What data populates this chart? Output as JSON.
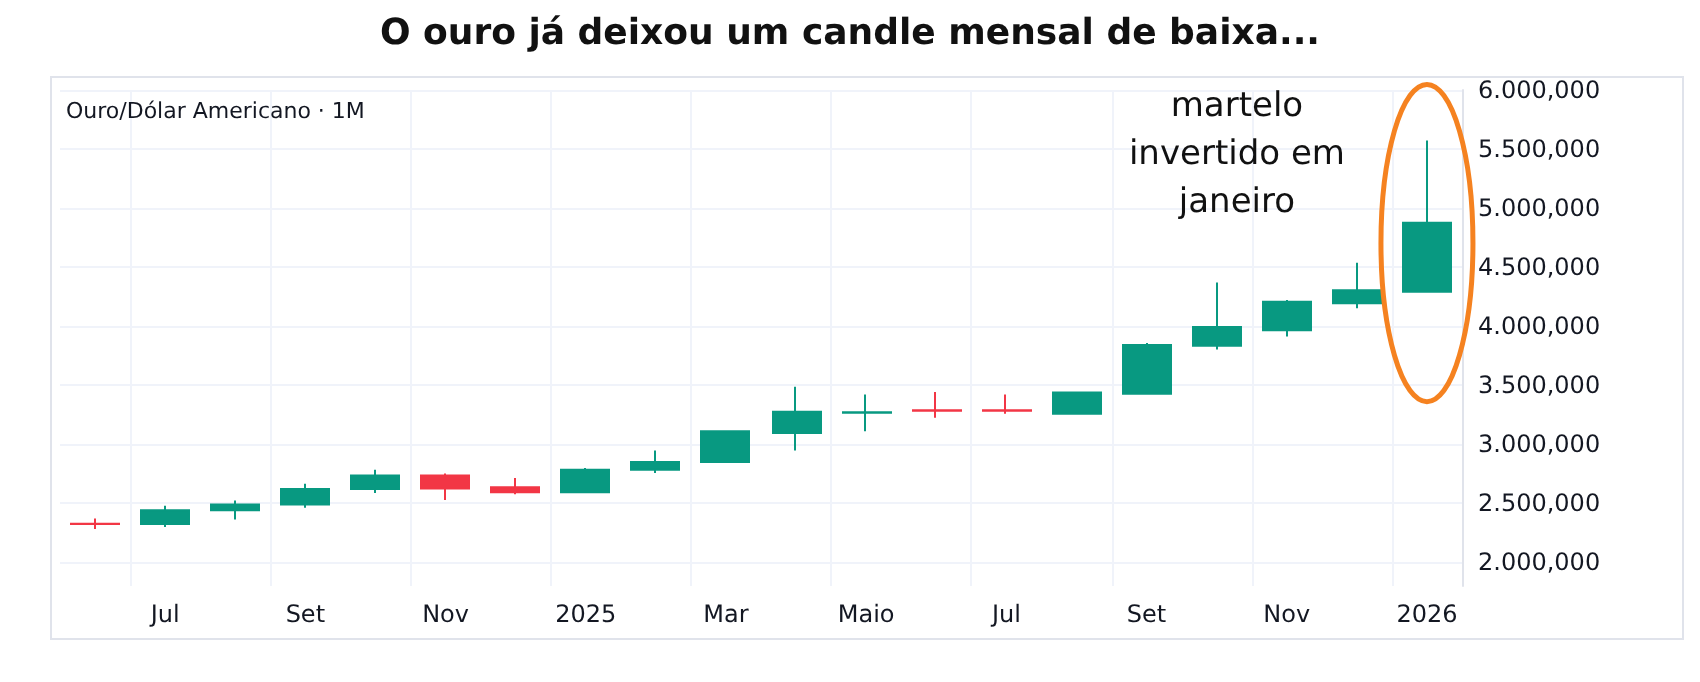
{
  "chart_data": {
    "type": "candlestick",
    "title": "O ouro já deixou um candle mensal de baixa...",
    "subtitle": "Ouro/Dólar Americano · 1M",
    "categories": [
      null,
      "Jul",
      null,
      "Set",
      null,
      "Nov",
      null,
      "2025",
      null,
      "Mar",
      null,
      "Maio",
      null,
      "Jul",
      null,
      "Set",
      null,
      "Nov",
      null,
      "2026"
    ],
    "ohlc": [
      [
        2327,
        2371,
        2283,
        2326
      ],
      [
        2326,
        2479,
        2300,
        2441
      ],
      [
        2441,
        2523,
        2364,
        2490
      ],
      [
        2490,
        2665,
        2463,
        2621
      ],
      [
        2621,
        2784,
        2588,
        2735
      ],
      [
        2735,
        2752,
        2528,
        2626
      ],
      [
        2637,
        2714,
        2577,
        2593
      ],
      [
        2593,
        2800,
        2590,
        2784
      ],
      [
        2784,
        2948,
        2757,
        2850
      ],
      [
        2850,
        3111,
        2850,
        3111
      ],
      [
        3095,
        3487,
        2948,
        3275
      ],
      [
        3268,
        3421,
        3111,
        3272
      ],
      [
        3288,
        3443,
        3225,
        3284
      ],
      [
        3288,
        3421,
        3258,
        3284
      ],
      [
        3258,
        3438,
        3258,
        3438
      ],
      [
        3427,
        3858,
        3427,
        3841
      ],
      [
        3835,
        4369,
        3803,
        3993
      ],
      [
        3966,
        4222,
        3912,
        4206
      ],
      [
        4194,
        4538,
        4152,
        4304
      ],
      [
        4292,
        5573,
        4292,
        4876
      ]
    ],
    "ylim": [
      1800,
      6000
    ],
    "yticks": [
      {
        "value": 2000,
        "label": "2.000,000"
      },
      {
        "value": 2500,
        "label": "2.500,000"
      },
      {
        "value": 3000,
        "label": "3.000,000"
      },
      {
        "value": 3500,
        "label": "3.500,000"
      },
      {
        "value": 4000,
        "label": "4.000,000"
      },
      {
        "value": 4500,
        "label": "4.500,000"
      },
      {
        "value": 5000,
        "label": "5.000,000"
      },
      {
        "value": 5500,
        "label": "5.500,000"
      },
      {
        "value": 6000,
        "label": "6.000,000"
      }
    ],
    "grid": true,
    "annotations": [
      {
        "text": "martelo invertido em janeiro",
        "x": "2026",
        "y": 5573
      }
    ]
  }
}
